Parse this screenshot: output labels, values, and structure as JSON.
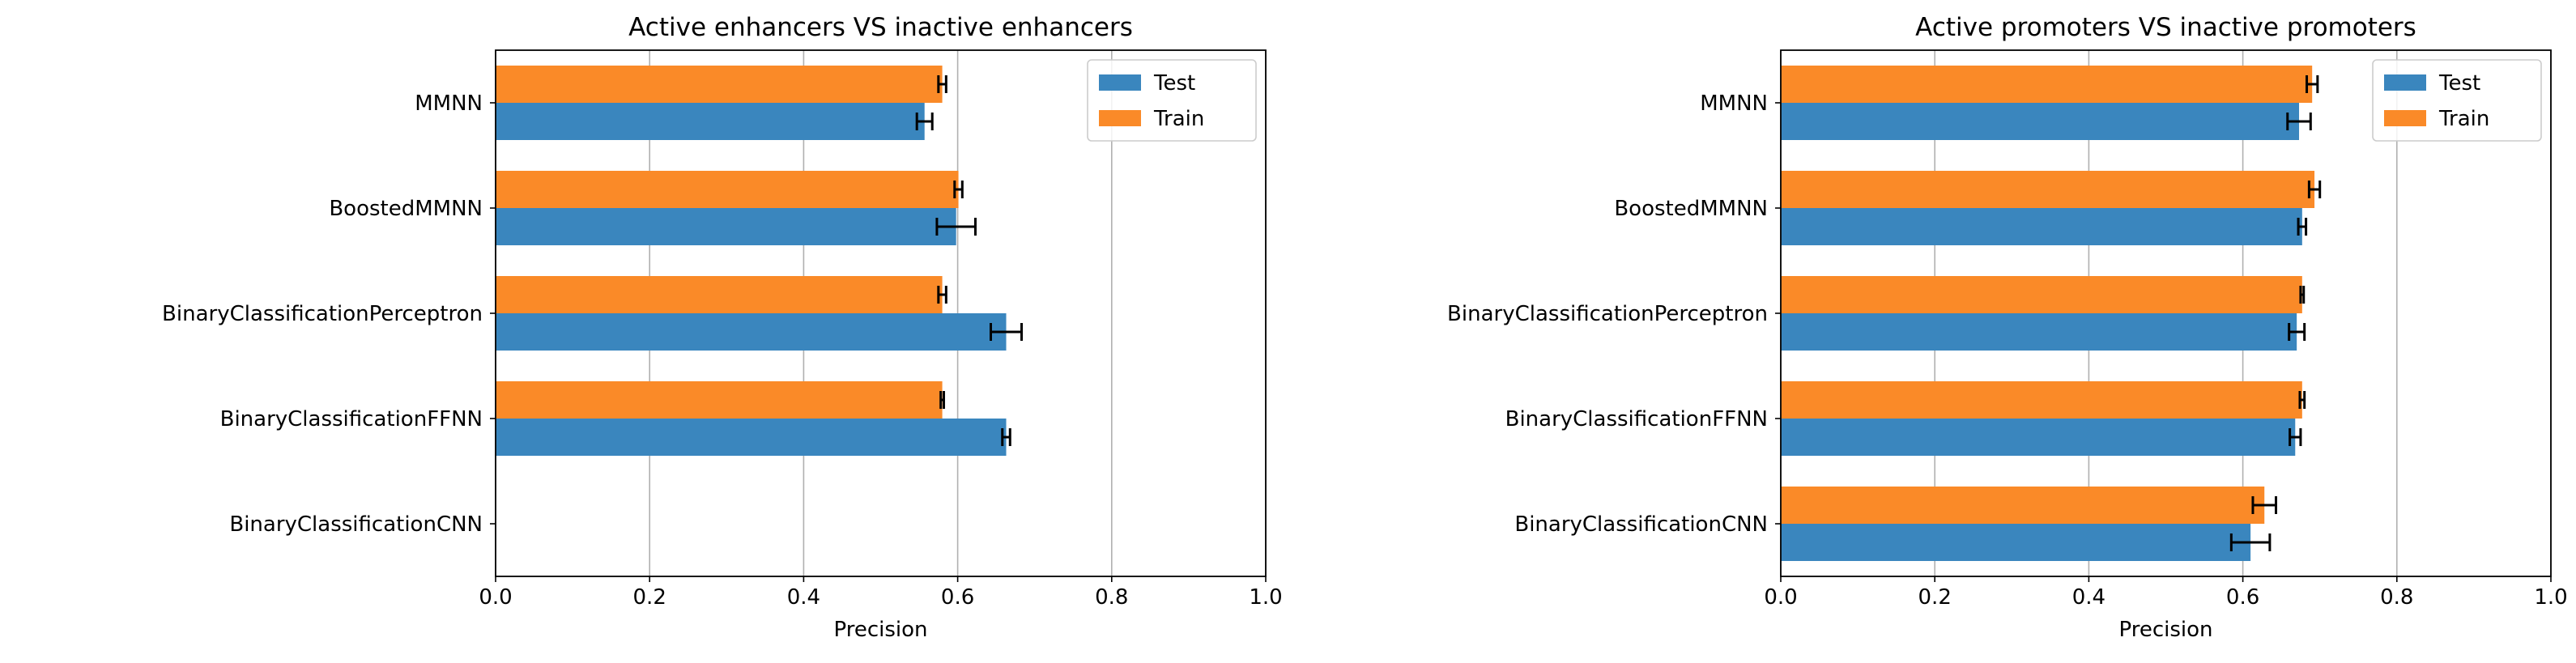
{
  "chart_data": [
    {
      "type": "bar",
      "orientation": "horizontal",
      "title": "Active enhancers VS inactive enhancers",
      "xlabel": "Precision",
      "ylabel": "",
      "xlim": [
        0,
        1
      ],
      "xticks": [
        "0.0",
        "0.2",
        "0.4",
        "0.6",
        "0.8",
        "1.0"
      ],
      "grid": "vertical",
      "legend_position": "top-right",
      "categories": [
        "MMNN",
        "BoostedMMNN",
        "BinaryClassificationPerceptron",
        "BinaryClassificationFFNN",
        "BinaryClassificationCNN"
      ],
      "series": [
        {
          "name": "Test",
          "color": "#3a86be",
          "values": [
            0.557,
            0.598,
            0.663,
            0.663,
            null
          ],
          "errors": [
            0.01,
            0.025,
            0.02,
            0.005,
            null
          ]
        },
        {
          "name": "Train",
          "color": "#fa8a28",
          "values": [
            0.58,
            0.601,
            0.58,
            0.58,
            null
          ],
          "errors": [
            0.005,
            0.005,
            0.005,
            0.002,
            null
          ]
        }
      ]
    },
    {
      "type": "bar",
      "orientation": "horizontal",
      "title": "Active promoters VS inactive promoters",
      "xlabel": "Precision",
      "ylabel": "",
      "xlim": [
        0,
        1
      ],
      "xticks": [
        "0.0",
        "0.2",
        "0.4",
        "0.6",
        "0.8",
        "1.0"
      ],
      "grid": "vertical",
      "legend_position": "top-right",
      "categories": [
        "MMNN",
        "BoostedMMNN",
        "BinaryClassificationPerceptron",
        "BinaryClassificationFFNN",
        "BinaryClassificationCNN"
      ],
      "series": [
        {
          "name": "Test",
          "color": "#3a86be",
          "values": [
            0.673,
            0.677,
            0.67,
            0.668,
            0.61
          ],
          "errors": [
            0.015,
            0.005,
            0.01,
            0.007,
            0.025
          ]
        },
        {
          "name": "Train",
          "color": "#fa8a28",
          "values": [
            0.69,
            0.693,
            0.677,
            0.677,
            0.628
          ],
          "errors": [
            0.007,
            0.007,
            0.002,
            0.003,
            0.015
          ]
        }
      ]
    }
  ]
}
